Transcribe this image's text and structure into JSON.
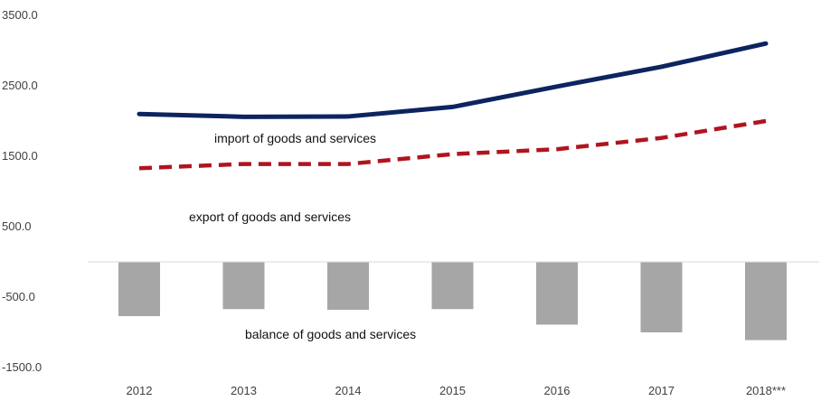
{
  "chart_data": {
    "type": "line",
    "categories": [
      "2012",
      "2013",
      "2014",
      "2015",
      "2016",
      "2017",
      "2018***"
    ],
    "y_ticks": [
      "3500.0",
      "2500.0",
      "1500.0",
      "500.0",
      "-500.0",
      "-1500.0"
    ],
    "ylim": [
      -1500,
      3500
    ],
    "grid": false,
    "legend": "none",
    "series": [
      {
        "name": "import of goods and services",
        "type": "line",
        "style": "solid",
        "color": "#0d2460",
        "values": [
          2100,
          2060,
          2065,
          2200,
          2490,
          2770,
          3100
        ]
      },
      {
        "name": "export of goods and services",
        "type": "line",
        "style": "dashed",
        "color": "#b0141e",
        "values": [
          1330,
          1390,
          1390,
          1530,
          1600,
          1760,
          2000
        ]
      },
      {
        "name": "balance of goods and services",
        "type": "bar",
        "color": "#a6a6a6",
        "values": [
          -770,
          -670,
          -680,
          -670,
          -890,
          -1000,
          -1110
        ]
      }
    ]
  }
}
